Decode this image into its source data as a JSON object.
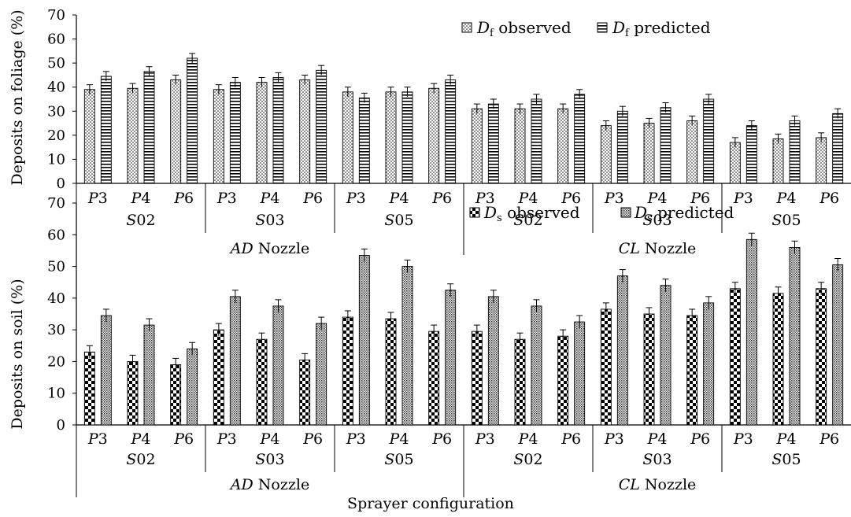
{
  "xlabel": "Sprayer configuration",
  "colors": {
    "axis": "#000000",
    "bar_stroke": "#000000",
    "background": "#ffffff"
  },
  "chart_data": [
    {
      "type": "bar",
      "ylabel": "Deposits on foliage (%)",
      "ylim": [
        0,
        70
      ],
      "yticks": [
        0,
        10,
        20,
        30,
        40,
        50,
        60,
        70
      ],
      "categories": [
        "P3",
        "P4",
        "P6",
        "P3",
        "P4",
        "P6",
        "P3",
        "P4",
        "P6",
        "P3",
        "P4",
        "P6",
        "P3",
        "P4",
        "P6",
        "P3",
        "P4",
        "P6"
      ],
      "groups": [
        {
          "label": "S02",
          "start": 0,
          "end": 3
        },
        {
          "label": "S03",
          "start": 3,
          "end": 6
        },
        {
          "label": "S05",
          "start": 6,
          "end": 9
        },
        {
          "label": "S02",
          "start": 9,
          "end": 12
        },
        {
          "label": "S03",
          "start": 12,
          "end": 15
        },
        {
          "label": "S05",
          "start": 15,
          "end": 18
        }
      ],
      "nozzles": [
        {
          "italic": "AD",
          "rest": " Nozzle",
          "start": 0,
          "end": 9
        },
        {
          "italic": "CL",
          "rest": " Nozzle",
          "start": 9,
          "end": 18
        }
      ],
      "legend": {
        "placement": "top-right",
        "sub": "f",
        "symbol": "D"
      },
      "series": [
        {
          "name": "observed",
          "pattern": "dots",
          "values": [
            39,
            39.5,
            43,
            39,
            42,
            43,
            38,
            38,
            39.5,
            31,
            31,
            31,
            24,
            25,
            26,
            17,
            18.5,
            19
          ],
          "errors": [
            2,
            2,
            2,
            2,
            2,
            2,
            2,
            2,
            2,
            2,
            2,
            2,
            2,
            2,
            2,
            2,
            2,
            2
          ]
        },
        {
          "name": "predicted",
          "pattern": "hlines",
          "values": [
            44.5,
            46.5,
            52,
            42,
            44,
            47,
            35.5,
            38,
            43,
            33,
            35,
            37,
            30,
            31.5,
            35,
            24,
            26,
            29
          ],
          "errors": [
            2,
            2,
            2,
            2,
            2,
            2,
            2,
            2,
            2,
            2,
            2,
            2,
            2,
            2,
            2,
            2,
            2,
            2
          ]
        }
      ]
    },
    {
      "type": "bar",
      "ylabel": "Deposits on soil (%)",
      "ylim": [
        0,
        70
      ],
      "yticks": [
        0,
        10,
        20,
        30,
        40,
        50,
        60,
        70
      ],
      "categories": [
        "P3",
        "P4",
        "P6",
        "P3",
        "P4",
        "P6",
        "P3",
        "P4",
        "P6",
        "P3",
        "P4",
        "P6",
        "P3",
        "P4",
        "P6",
        "P3",
        "P4",
        "P6"
      ],
      "groups": [
        {
          "label": "S02",
          "start": 0,
          "end": 3
        },
        {
          "label": "S03",
          "start": 3,
          "end": 6
        },
        {
          "label": "S05",
          "start": 6,
          "end": 9
        },
        {
          "label": "S02",
          "start": 9,
          "end": 12
        },
        {
          "label": "S03",
          "start": 12,
          "end": 15
        },
        {
          "label": "S05",
          "start": 15,
          "end": 18
        }
      ],
      "nozzles": [
        {
          "italic": "AD",
          "rest": " Nozzle",
          "start": 0,
          "end": 9
        },
        {
          "italic": "CL",
          "rest": " Nozzle",
          "start": 9,
          "end": 18
        }
      ],
      "legend": {
        "placement": "top-right",
        "sub": "s",
        "symbol": "D"
      },
      "series": [
        {
          "name": "observed",
          "pattern": "checker",
          "values": [
            23,
            20,
            19,
            30,
            27,
            20.5,
            34,
            33.5,
            29.5,
            29.5,
            27,
            28,
            36.5,
            35,
            34.5,
            43,
            41.5,
            43
          ],
          "errors": [
            2,
            2,
            2,
            2,
            2,
            2,
            2,
            2,
            2,
            2,
            2,
            2,
            2,
            2,
            2,
            2,
            2,
            2
          ]
        },
        {
          "name": "predicted",
          "pattern": "crosshatch",
          "values": [
            34.5,
            31.5,
            24,
            40.5,
            37.5,
            32,
            53.5,
            50,
            42.5,
            40.5,
            37.5,
            32.5,
            47,
            44,
            38.5,
            58.5,
            56,
            50.5
          ],
          "errors": [
            2,
            2,
            2,
            2,
            2,
            2,
            2,
            2,
            2,
            2,
            2,
            2,
            2,
            2,
            2,
            2,
            2,
            2
          ]
        }
      ]
    }
  ]
}
